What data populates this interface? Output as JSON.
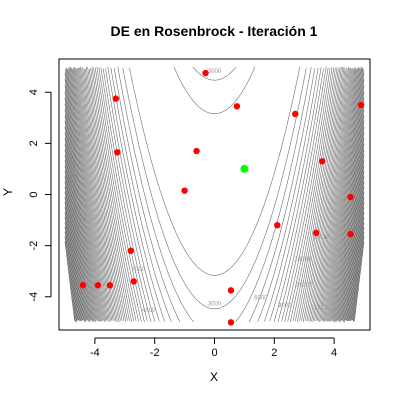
{
  "chart_data": {
    "type": "scatter",
    "title": "DE en Rosenbrock - Iteración 1",
    "xlabel": "X",
    "ylabel": "Y",
    "xlim": [
      -5.2,
      5.2
    ],
    "ylim": [
      -5.3,
      5.3
    ],
    "x_ticks": [
      -4,
      -2,
      0,
      2,
      4
    ],
    "y_ticks": [
      -4,
      -2,
      0,
      2,
      4
    ],
    "x_tick_labels": [
      "-4",
      "-2",
      "0",
      "2",
      "4"
    ],
    "y_tick_labels": [
      "-4",
      "-2",
      "0",
      "2",
      "4"
    ],
    "background": {
      "type": "contour",
      "function": "Rosenbrock",
      "levels": [
        1000,
        2000,
        3000,
        4000,
        5000,
        6000,
        7000,
        8000,
        9000,
        10000,
        11000,
        12000,
        13000,
        14000,
        15000,
        16000,
        17000,
        18000,
        19000,
        20000,
        21000,
        22000,
        23000,
        24000,
        25000,
        26000,
        27000,
        28000,
        29000,
        30000,
        31000,
        32000,
        33000,
        34000,
        35000,
        36000,
        37000,
        38000,
        39000,
        40000,
        41000,
        42000,
        43000,
        44000,
        45000,
        46000,
        47000,
        48000,
        49000,
        50000,
        51000,
        52000,
        53000,
        54000,
        55000,
        56000,
        57000,
        58000,
        59000,
        60000,
        61000,
        62000,
        63000,
        64000,
        65000,
        66000,
        67000,
        68000,
        69000,
        70000,
        71000,
        72000
      ],
      "labels": [
        {
          "text": "3000",
          "x": 0.0,
          "y": -4.35
        },
        {
          "text": "3000",
          "x": 0.0,
          "y": 4.75
        },
        {
          "text": "4000",
          "x": -2.2,
          "y": -4.6
        },
        {
          "text": "7000",
          "x": -2.55,
          "y": -3.0
        },
        {
          "text": "6000",
          "x": 1.55,
          "y": -4.1
        },
        {
          "text": "9000",
          "x": 2.35,
          "y": -4.4
        },
        {
          "text": "20000",
          "x": 3.0,
          "y": -3.6
        },
        {
          "text": "10000",
          "x": 2.95,
          "y": -2.6
        },
        {
          "text": "17000",
          "x": 3.6,
          "y": -4.5
        },
        {
          "text": "15000",
          "x": 3.55,
          "y": -1.75
        }
      ],
      "color": "#6e6e6e"
    },
    "series": [
      {
        "color": "#ff0000",
        "x": [
          -0.3,
          0.75,
          -3.3,
          2.7,
          4.9,
          -3.25,
          -0.6,
          3.6,
          -1.0,
          4.55,
          2.1,
          3.4,
          4.55,
          -2.8,
          -4.4,
          -3.9,
          -3.5,
          -2.7,
          0.55,
          0.55
        ],
        "y": [
          4.75,
          3.45,
          3.75,
          3.15,
          3.5,
          1.65,
          1.7,
          1.3,
          0.15,
          -0.1,
          -1.2,
          -1.5,
          -1.55,
          -2.2,
          -3.55,
          -3.55,
          -3.55,
          -3.4,
          -3.75,
          -5.0
        ]
      },
      {
        "color": "#00ff00",
        "x": [
          1.0
        ],
        "y": [
          1.0
        ]
      }
    ]
  }
}
